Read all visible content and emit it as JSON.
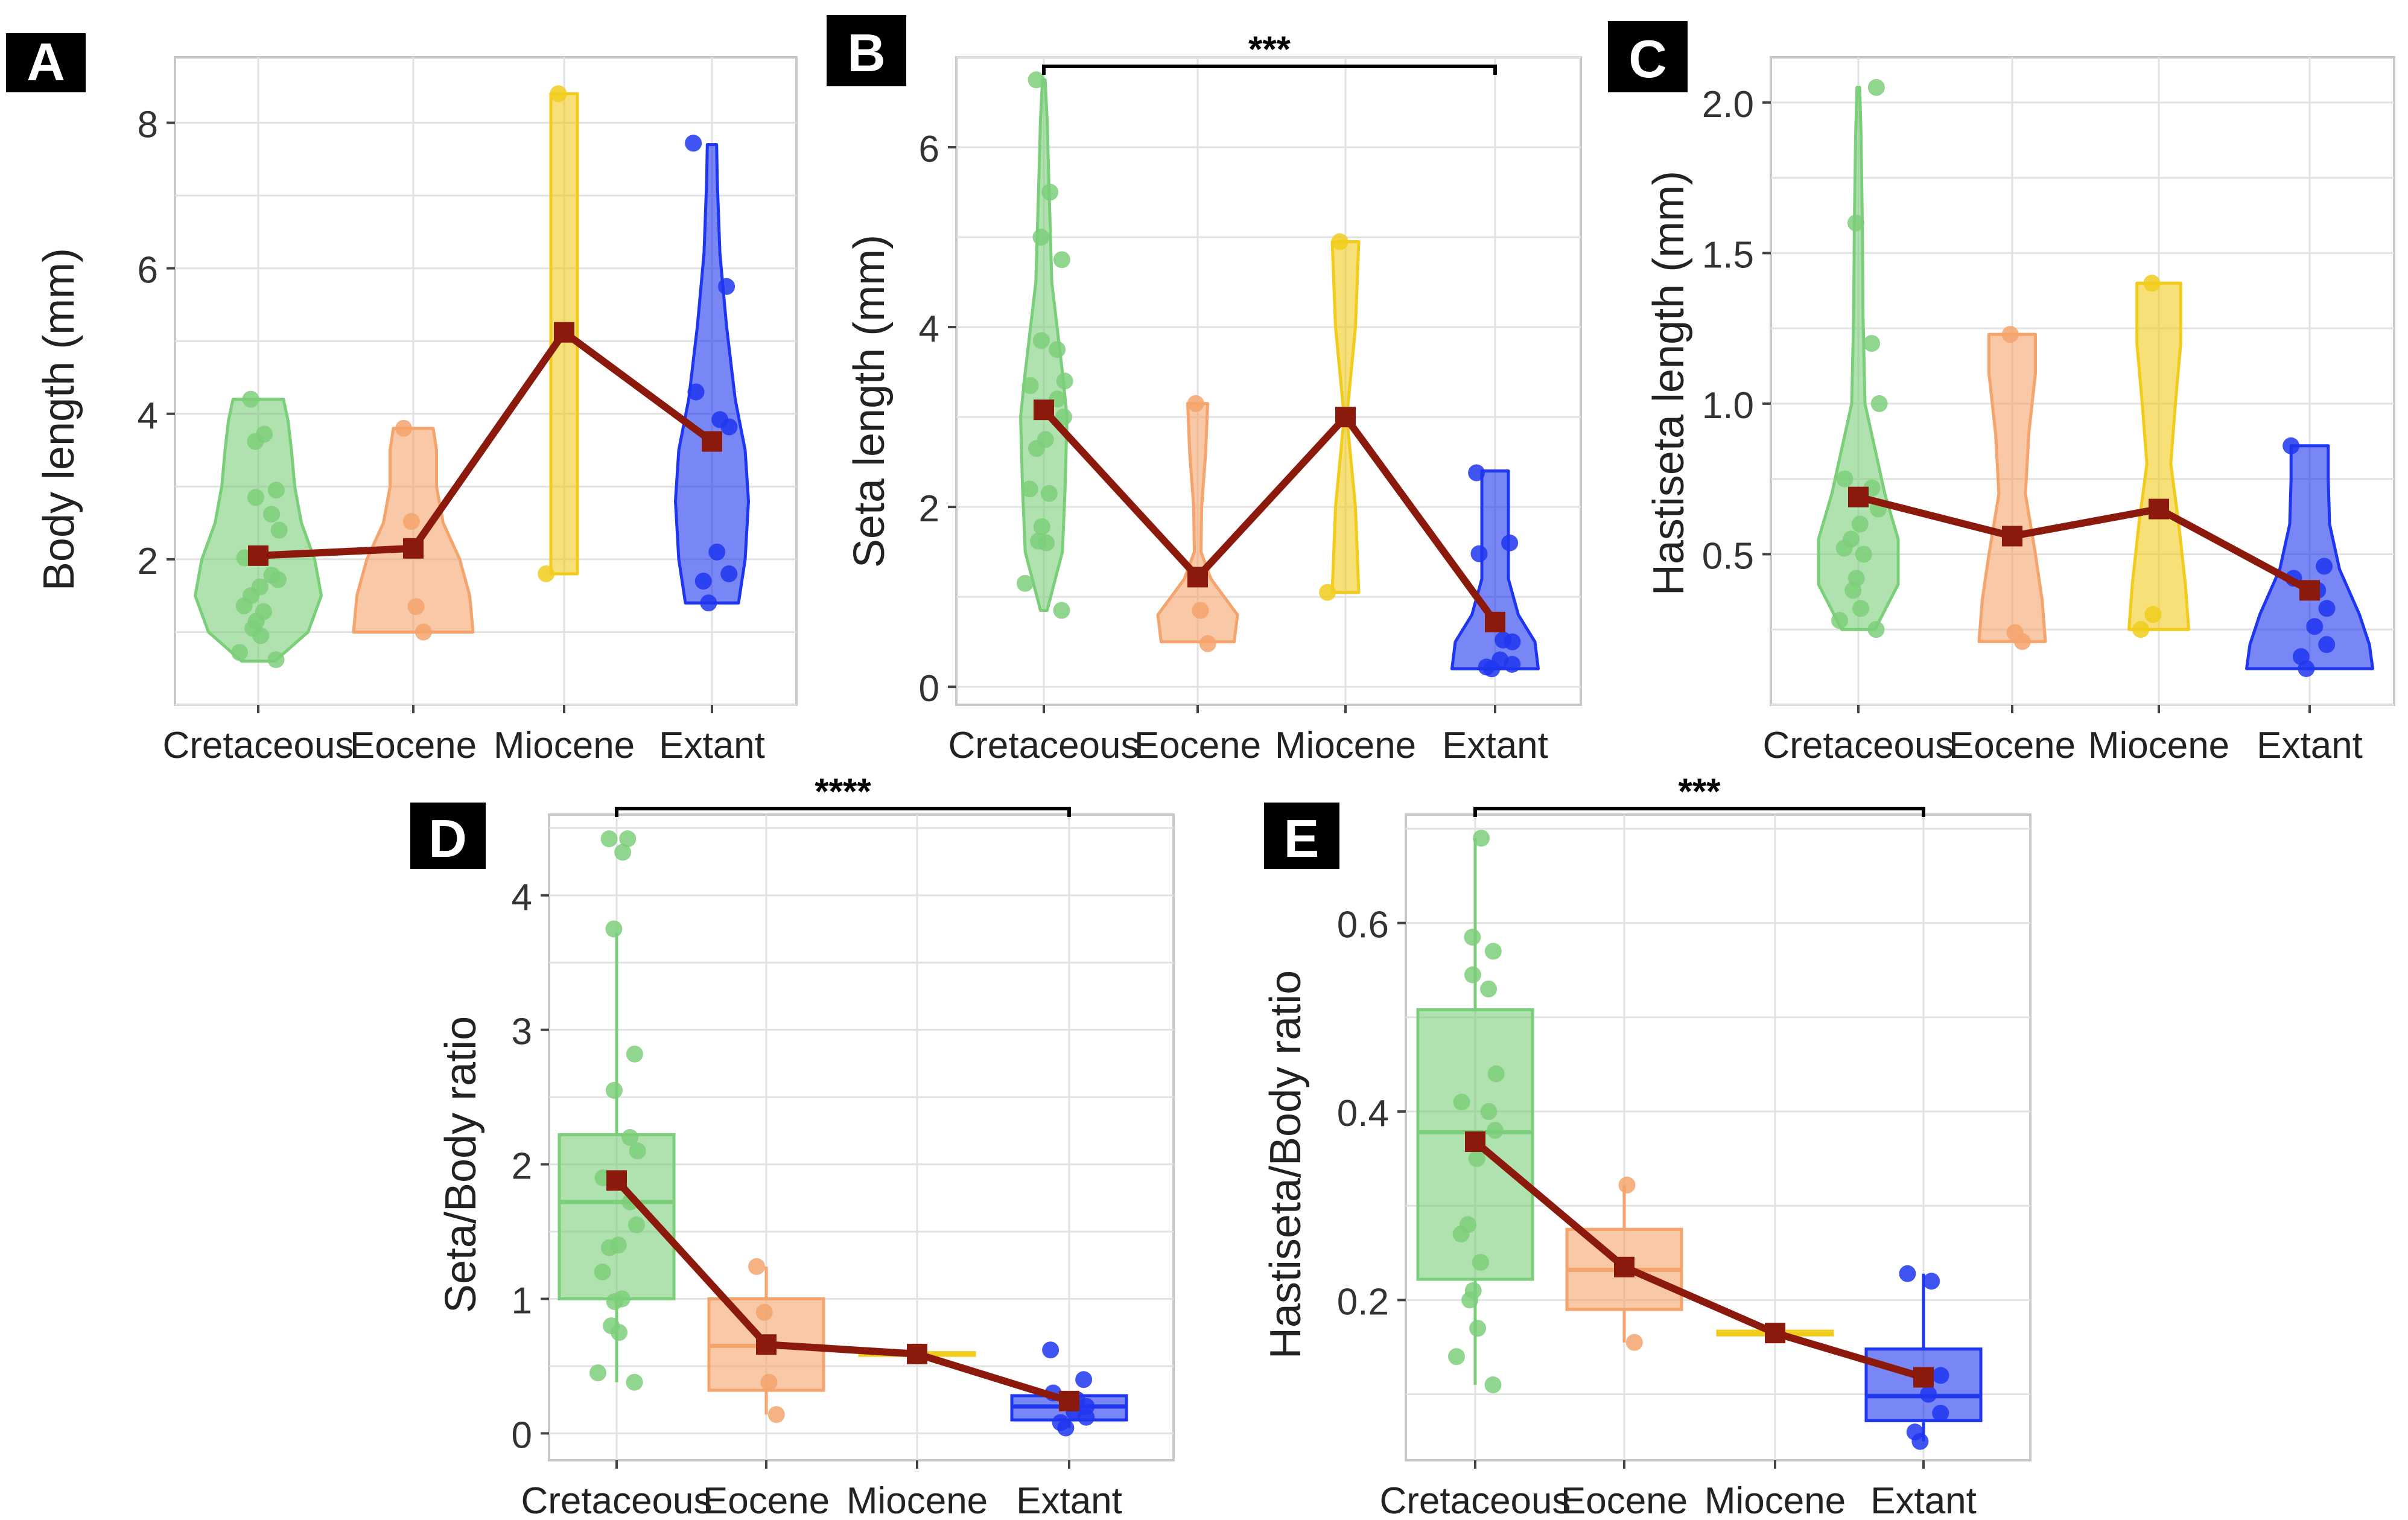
{
  "figure": {
    "colors": {
      "Cretaceous": "#7ccf7a",
      "Eocene": "#f4a46c",
      "Miocene": "#f1cc1c",
      "Extant": "#1f36f0",
      "mean_line": "#8b1a0c",
      "grid": "#e2e2e2",
      "frame": "#c8c8c8"
    }
  },
  "chart_data": [
    {
      "panel": "A",
      "type": "violin",
      "categories": [
        "Cretaceous",
        "Eocene",
        "Miocene",
        "Extant"
      ],
      "ylabel": "Body length (mm)",
      "xlabel": "",
      "ylim": [
        0,
        8.9
      ],
      "yticks": [
        2,
        4,
        6,
        8
      ],
      "ytick_labels": [
        "2",
        "4",
        "6",
        "8"
      ],
      "grid": true,
      "groups": [
        {
          "name": "Cretaceous",
          "min": 0.6,
          "max": 4.2,
          "density": [
            [
              0.6,
              0.25
            ],
            [
              1.0,
              0.75
            ],
            [
              1.5,
              0.95
            ],
            [
              2.0,
              0.85
            ],
            [
              2.5,
              0.65
            ],
            [
              3.0,
              0.55
            ],
            [
              3.5,
              0.5
            ],
            [
              3.9,
              0.45
            ],
            [
              4.2,
              0.38
            ]
          ],
          "points": [
            0.62,
            0.72,
            0.95,
            1.05,
            1.15,
            1.28,
            1.36,
            1.5,
            1.62,
            1.72,
            1.78,
            2.02,
            2.4,
            2.62,
            2.85,
            2.95,
            3.62,
            3.72,
            4.2
          ]
        },
        {
          "name": "Eocene",
          "min": 1.0,
          "max": 3.8,
          "density": [
            [
              1.0,
              0.9
            ],
            [
              1.5,
              0.85
            ],
            [
              2.0,
              0.7
            ],
            [
              2.5,
              0.45
            ],
            [
              3.0,
              0.35
            ],
            [
              3.5,
              0.35
            ],
            [
              3.8,
              0.3
            ]
          ],
          "points": [
            1.0,
            1.35,
            2.52,
            3.8
          ]
        },
        {
          "name": "Miocene",
          "min": 1.8,
          "max": 8.4,
          "density": [
            [
              1.8,
              0.2
            ],
            [
              3.0,
              0.2
            ],
            [
              5.0,
              0.2
            ],
            [
              7.0,
              0.2
            ],
            [
              8.4,
              0.2
            ]
          ],
          "points": [
            1.8,
            8.4
          ]
        },
        {
          "name": "Extant",
          "min": 1.4,
          "max": 7.7,
          "density": [
            [
              1.4,
              0.4
            ],
            [
              2.0,
              0.5
            ],
            [
              2.8,
              0.55
            ],
            [
              3.5,
              0.5
            ],
            [
              4.2,
              0.35
            ],
            [
              5.2,
              0.22
            ],
            [
              6.2,
              0.12
            ],
            [
              7.2,
              0.08
            ],
            [
              7.7,
              0.07
            ]
          ],
          "points": [
            1.4,
            1.7,
            1.8,
            2.1,
            3.82,
            3.92,
            4.3,
            5.75,
            7.72
          ]
        }
      ],
      "means": [
        2.05,
        2.15,
        5.12,
        3.62
      ]
    },
    {
      "panel": "B",
      "type": "violin",
      "categories": [
        "Cretaceous",
        "Eocene",
        "Miocene",
        "Extant"
      ],
      "ylabel": "Seta length (mm)",
      "xlabel": "",
      "ylim": [
        -0.2,
        7.0
      ],
      "yticks": [
        0,
        2,
        4,
        6
      ],
      "ytick_labels": [
        "0",
        "2",
        "4",
        "6"
      ],
      "grid": true,
      "significance": {
        "from": "Cretaceous",
        "to": "Extant",
        "label": "***"
      },
      "groups": [
        {
          "name": "Cretaceous",
          "min": 0.85,
          "max": 6.75,
          "density": [
            [
              0.85,
              0.05
            ],
            [
              1.5,
              0.28
            ],
            [
              2.2,
              0.32
            ],
            [
              3.0,
              0.35
            ],
            [
              3.5,
              0.28
            ],
            [
              4.5,
              0.12
            ],
            [
              5.5,
              0.08
            ],
            [
              6.3,
              0.05
            ],
            [
              6.75,
              0.02
            ]
          ],
          "points": [
            0.85,
            1.15,
            1.6,
            1.62,
            1.78,
            2.15,
            2.2,
            2.65,
            2.75,
            3.0,
            3.2,
            3.35,
            3.4,
            3.75,
            3.85,
            4.75,
            5.0,
            5.5,
            6.75
          ]
        },
        {
          "name": "Eocene",
          "min": 0.5,
          "max": 3.15,
          "density": [
            [
              0.5,
              0.55
            ],
            [
              0.8,
              0.6
            ],
            [
              1.2,
              0.2
            ],
            [
              1.5,
              0.05
            ],
            [
              2.0,
              0.06
            ],
            [
              2.6,
              0.12
            ],
            [
              3.15,
              0.15
            ]
          ],
          "points": [
            0.48,
            0.85,
            3.15
          ]
        },
        {
          "name": "Miocene",
          "min": 1.05,
          "max": 4.95,
          "density": [
            [
              1.05,
              0.2
            ],
            [
              2.0,
              0.15
            ],
            [
              3.0,
              0.02
            ],
            [
              4.0,
              0.15
            ],
            [
              4.95,
              0.2
            ]
          ],
          "points": [
            1.05,
            4.95
          ]
        },
        {
          "name": "Extant",
          "min": 0.2,
          "max": 2.4,
          "density": [
            [
              0.2,
              0.65
            ],
            [
              0.5,
              0.6
            ],
            [
              0.8,
              0.35
            ],
            [
              1.2,
              0.2
            ],
            [
              1.6,
              0.2
            ],
            [
              2.0,
              0.2
            ],
            [
              2.4,
              0.2
            ]
          ],
          "points": [
            0.2,
            0.22,
            0.25,
            0.3,
            0.5,
            0.52,
            1.48,
            1.6,
            2.38
          ]
        }
      ],
      "means": [
        3.08,
        1.22,
        3.0,
        0.72
      ]
    },
    {
      "panel": "C",
      "type": "violin",
      "categories": [
        "Cretaceous",
        "Eocene",
        "Miocene",
        "Extant"
      ],
      "ylabel": "Hastiseta length (mm)",
      "xlabel": "",
      "ylim": [
        0.0,
        2.15
      ],
      "yticks": [
        0.5,
        1.0,
        1.5,
        2.0
      ],
      "ytick_labels": [
        "0.5",
        "1.0",
        "1.5",
        "2.0"
      ],
      "grid": true,
      "groups": [
        {
          "name": "Cretaceous",
          "min": 0.25,
          "max": 2.05,
          "density": [
            [
              0.25,
              0.25
            ],
            [
              0.4,
              0.6
            ],
            [
              0.55,
              0.6
            ],
            [
              0.7,
              0.4
            ],
            [
              1.0,
              0.1
            ],
            [
              1.3,
              0.07
            ],
            [
              1.6,
              0.06
            ],
            [
              1.9,
              0.04
            ],
            [
              2.05,
              0.02
            ]
          ],
          "points": [
            0.25,
            0.28,
            0.32,
            0.38,
            0.42,
            0.5,
            0.52,
            0.55,
            0.6,
            0.65,
            0.72,
            0.75,
            1.0,
            1.2,
            1.6,
            2.05
          ]
        },
        {
          "name": "Eocene",
          "min": 0.21,
          "max": 1.23,
          "density": [
            [
              0.21,
              0.5
            ],
            [
              0.35,
              0.45
            ],
            [
              0.5,
              0.35
            ],
            [
              0.7,
              0.2
            ],
            [
              0.9,
              0.25
            ],
            [
              1.1,
              0.35
            ],
            [
              1.23,
              0.35
            ]
          ],
          "points": [
            0.21,
            0.24,
            1.23
          ]
        },
        {
          "name": "Miocene",
          "min": 0.25,
          "max": 1.4,
          "density": [
            [
              0.25,
              0.45
            ],
            [
              0.4,
              0.4
            ],
            [
              0.6,
              0.3
            ],
            [
              0.8,
              0.18
            ],
            [
              1.0,
              0.25
            ],
            [
              1.2,
              0.33
            ],
            [
              1.4,
              0.33
            ]
          ],
          "points": [
            0.25,
            0.3,
            1.4
          ]
        },
        {
          "name": "Extant",
          "min": 0.12,
          "max": 0.86,
          "density": [
            [
              0.12,
              0.95
            ],
            [
              0.2,
              0.9
            ],
            [
              0.3,
              0.75
            ],
            [
              0.45,
              0.45
            ],
            [
              0.6,
              0.3
            ],
            [
              0.75,
              0.28
            ],
            [
              0.86,
              0.28
            ]
          ],
          "points": [
            0.12,
            0.16,
            0.2,
            0.26,
            0.32,
            0.38,
            0.42,
            0.46,
            0.86
          ]
        }
      ],
      "means": [
        0.69,
        0.56,
        0.65,
        0.38
      ]
    },
    {
      "panel": "D",
      "type": "box",
      "categories": [
        "Cretaceous",
        "Eocene",
        "Miocene",
        "Extant"
      ],
      "ylabel": "Seta/Body ratio",
      "xlabel": "",
      "ylim": [
        -0.2,
        4.6
      ],
      "yticks": [
        0,
        1,
        2,
        3,
        4
      ],
      "ytick_labels": [
        "0",
        "1",
        "2",
        "3",
        "4"
      ],
      "grid": true,
      "significance": {
        "from": "Cretaceous",
        "to": "Extant",
        "label": "****"
      },
      "groups": [
        {
          "name": "Cretaceous",
          "q1": 1.0,
          "median": 1.72,
          "q3": 2.22,
          "whisker_low": 0.38,
          "whisker_high": 3.72,
          "points": [
            0.38,
            0.45,
            0.75,
            0.8,
            0.98,
            1.0,
            1.2,
            1.38,
            1.4,
            1.55,
            1.72,
            1.9,
            2.1,
            2.2,
            2.55,
            2.82,
            3.75,
            4.32,
            4.42,
            4.42
          ]
        },
        {
          "name": "Eocene",
          "q1": 0.32,
          "median": 0.65,
          "q3": 1.0,
          "whisker_low": 0.14,
          "whisker_high": 1.24,
          "points": [
            0.14,
            0.38,
            0.9,
            1.24
          ]
        },
        {
          "name": "Miocene",
          "q1": 0.58,
          "median": 0.59,
          "q3": 0.6,
          "whisker_low": 0.58,
          "whisker_high": 0.6,
          "points": []
        },
        {
          "name": "Extant",
          "q1": 0.1,
          "median": 0.2,
          "q3": 0.28,
          "whisker_low": 0.04,
          "whisker_high": 0.28,
          "points": [
            0.04,
            0.08,
            0.12,
            0.16,
            0.2,
            0.25,
            0.3,
            0.4,
            0.62
          ]
        }
      ],
      "means": [
        1.88,
        0.66,
        0.59,
        0.24
      ]
    },
    {
      "panel": "E",
      "type": "box",
      "categories": [
        "Cretaceous",
        "Eocene",
        "Miocene",
        "Extant"
      ],
      "ylabel": "Hastiseta/Body ratio",
      "xlabel": "",
      "ylim": [
        0.03,
        0.715
      ],
      "yticks": [
        0.2,
        0.4,
        0.6
      ],
      "ytick_labels": [
        "0.2",
        "0.4",
        "0.6"
      ],
      "grid": true,
      "significance": {
        "from": "Cretaceous",
        "to": "Extant",
        "label": "***"
      },
      "groups": [
        {
          "name": "Cretaceous",
          "q1": 0.222,
          "median": 0.378,
          "q3": 0.508,
          "whisker_low": 0.11,
          "whisker_high": 0.69,
          "points": [
            0.11,
            0.14,
            0.17,
            0.2,
            0.21,
            0.24,
            0.27,
            0.28,
            0.35,
            0.38,
            0.4,
            0.41,
            0.44,
            0.53,
            0.545,
            0.57,
            0.585,
            0.69
          ]
        },
        {
          "name": "Eocene",
          "q1": 0.19,
          "median": 0.232,
          "q3": 0.275,
          "whisker_low": 0.155,
          "whisker_high": 0.322,
          "points": [
            0.155,
            0.322
          ]
        },
        {
          "name": "Miocene",
          "q1": 0.163,
          "median": 0.165,
          "q3": 0.167,
          "whisker_low": 0.163,
          "whisker_high": 0.167,
          "points": []
        },
        {
          "name": "Extant",
          "q1": 0.072,
          "median": 0.098,
          "q3": 0.148,
          "whisker_low": 0.05,
          "whisker_high": 0.228,
          "points": [
            0.05,
            0.06,
            0.08,
            0.1,
            0.12,
            0.22,
            0.228
          ]
        }
      ],
      "means": [
        0.368,
        0.235,
        0.165,
        0.118
      ]
    }
  ]
}
